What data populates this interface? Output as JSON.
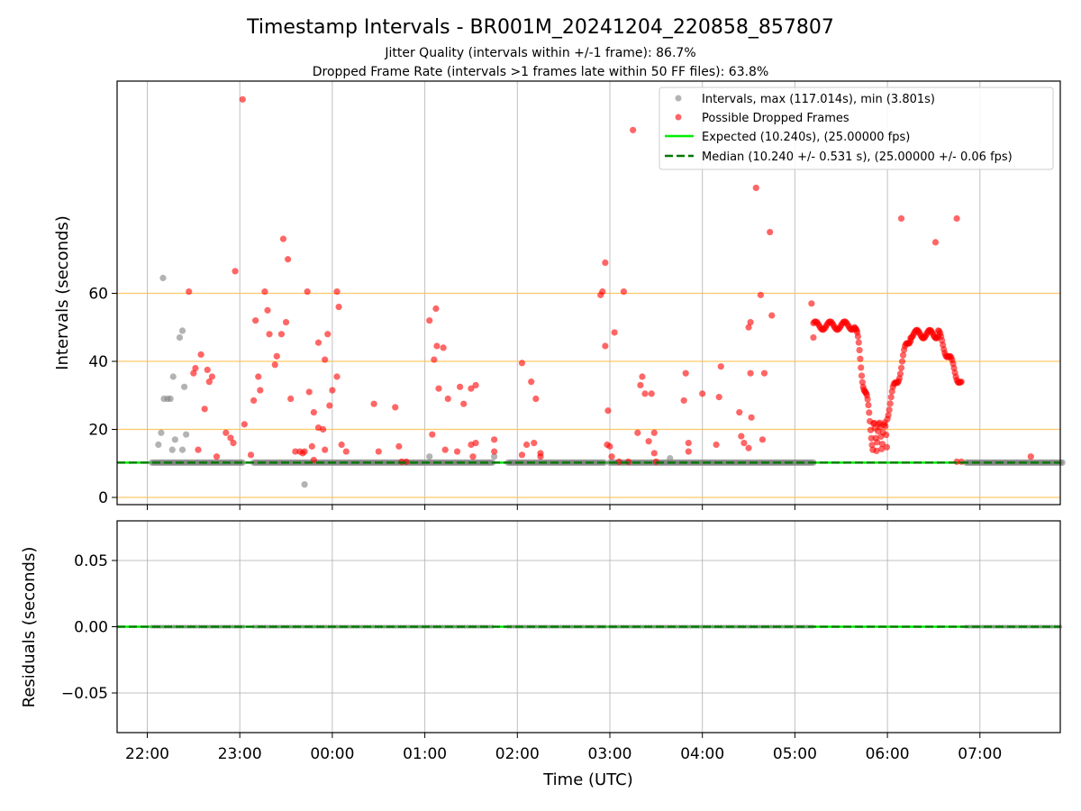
{
  "chart_data": [
    {
      "type": "scatter",
      "title": "Timestamp Intervals - BR001M_20241204_220858_857807",
      "subtitles": [
        "Jitter Quality (intervals within +/-1 frame): 86.7%",
        "Dropped Frame Rate (intervals >1 frames late within 50 FF files): 63.8%"
      ],
      "xlabel": "",
      "ylabel": "Intervals (seconds)",
      "x_unit": "hours since 00:00 UTC (2024-12-05)",
      "xlim": [
        -2.32,
        7.87
      ],
      "ylim": [
        -2,
        123
      ],
      "yticks": [
        0,
        20,
        40,
        60
      ],
      "xtick_labels": [
        "22:00",
        "23:00",
        "00:00",
        "01:00",
        "02:00",
        "03:00",
        "04:00",
        "05:00",
        "06:00",
        "07:00"
      ],
      "hlines_orange": [
        0,
        20,
        40,
        60
      ],
      "grid": "vertical",
      "legend_position": "top-right",
      "legend": [
        "Intervals, max (117.014s), min (3.801s)",
        "Possible Dropped Frames",
        "Expected (10.240s), (25.00000 fps)",
        "Median (10.240 +/- 0.531 s), (25.00000 +/- 0.06 fps)"
      ],
      "expected": 10.24,
      "median": 10.24,
      "series": [
        {
          "name": "Intervals",
          "color": "#808080",
          "segments": [
            [
              -1.95,
              -0.95
            ],
            [
              -0.85,
              1.75
            ],
            [
              1.9,
              2.95
            ],
            [
              3.0,
              5.2
            ],
            [
              6.85,
              7.9
            ]
          ],
          "points": [
            [
              -1.88,
              15.5
            ],
            [
              -1.85,
              19
            ],
            [
              -1.82,
              29
            ],
            [
              -1.78,
              29
            ],
            [
              -1.75,
              29
            ],
            [
              -1.83,
              64.5
            ],
            [
              -1.72,
              35.5
            ],
            [
              -1.65,
              47
            ],
            [
              -1.62,
              49
            ],
            [
              -1.6,
              32.5
            ],
            [
              -1.58,
              18.5
            ],
            [
              -1.7,
              17
            ],
            [
              -1.73,
              14
            ],
            [
              -1.62,
              14
            ],
            [
              -0.3,
              3.8
            ],
            [
              1.05,
              12
            ],
            [
              1.75,
              12
            ],
            [
              3.65,
              11.5
            ]
          ]
        },
        {
          "name": "Possible Dropped Frames",
          "color": "#ff0000",
          "points": [
            [
              -1.55,
              60.5
            ],
            [
              -1.5,
              36.5
            ],
            [
              -1.48,
              38
            ],
            [
              -1.45,
              14
            ],
            [
              -1.42,
              42
            ],
            [
              -1.38,
              26
            ],
            [
              -1.35,
              37.5
            ],
            [
              -1.33,
              34
            ],
            [
              -1.3,
              35.5
            ],
            [
              -1.25,
              12
            ],
            [
              -1.15,
              19
            ],
            [
              -1.1,
              17.5
            ],
            [
              -1.07,
              16
            ],
            [
              -1.05,
              66.5
            ],
            [
              -0.95,
              21.5
            ],
            [
              -0.88,
              12.5
            ],
            [
              -0.85,
              28.5
            ],
            [
              -0.83,
              52
            ],
            [
              -0.8,
              35.5
            ],
            [
              -0.78,
              31.5
            ],
            [
              -0.73,
              60.5
            ],
            [
              -0.7,
              55
            ],
            [
              -0.68,
              48
            ],
            [
              -0.62,
              39
            ],
            [
              -0.6,
              41.5
            ],
            [
              -0.55,
              48
            ],
            [
              -0.5,
              51.5
            ],
            [
              -0.45,
              29
            ],
            [
              -0.97,
              117
            ],
            [
              -0.53,
              76
            ],
            [
              -0.48,
              70
            ],
            [
              -0.35,
              13.5
            ],
            [
              -0.32,
              13
            ],
            [
              -0.2,
              11
            ],
            [
              -0.15,
              45.5
            ],
            [
              -0.08,
              40.5
            ],
            [
              -0.05,
              48
            ],
            [
              -0.03,
              27
            ],
            [
              0.0,
              31.5
            ],
            [
              0.05,
              60.5
            ],
            [
              0.07,
              56
            ],
            [
              0.05,
              35.5
            ],
            [
              0.1,
              15.5
            ],
            [
              0.15,
              13.5
            ],
            [
              -0.27,
              60.5
            ],
            [
              -0.25,
              31
            ],
            [
              -0.2,
              25
            ],
            [
              -0.15,
              20.5
            ],
            [
              -0.1,
              20
            ],
            [
              -0.08,
              14
            ],
            [
              -0.22,
              15
            ],
            [
              -0.3,
              13.5
            ],
            [
              -0.4,
              13.5
            ],
            [
              0.45,
              27.5
            ],
            [
              0.5,
              13.5
            ],
            [
              0.68,
              26.5
            ],
            [
              0.72,
              15
            ],
            [
              0.75,
              10.5
            ],
            [
              0.8,
              10.5
            ],
            [
              1.05,
              52
            ],
            [
              1.08,
              18.5
            ],
            [
              1.1,
              40.5
            ],
            [
              1.12,
              55.5
            ],
            [
              1.13,
              44.5
            ],
            [
              1.15,
              32
            ],
            [
              1.2,
              44
            ],
            [
              1.22,
              14
            ],
            [
              1.25,
              29
            ],
            [
              1.35,
              13.5
            ],
            [
              1.38,
              32.5
            ],
            [
              1.42,
              27.5
            ],
            [
              1.5,
              32
            ],
            [
              1.5,
              15.5
            ],
            [
              1.52,
              12
            ],
            [
              1.55,
              33
            ],
            [
              1.55,
              16
            ],
            [
              1.75,
              17
            ],
            [
              1.75,
              13.5
            ],
            [
              2.05,
              39.5
            ],
            [
              2.05,
              12.5
            ],
            [
              2.1,
              15.5
            ],
            [
              2.15,
              34
            ],
            [
              2.18,
              16
            ],
            [
              2.2,
              29
            ],
            [
              2.25,
              13
            ],
            [
              2.25,
              12
            ],
            [
              2.9,
              59.5
            ],
            [
              2.92,
              60.5
            ],
            [
              2.95,
              69
            ],
            [
              2.95,
              44.5
            ],
            [
              2.97,
              15.5
            ],
            [
              2.98,
              25.5
            ],
            [
              3.0,
              15
            ],
            [
              3.02,
              12
            ],
            [
              3.05,
              48.5
            ],
            [
              3.1,
              10.5
            ],
            [
              3.15,
              60.5
            ],
            [
              3.2,
              10.5
            ],
            [
              3.25,
              108
            ],
            [
              3.3,
              19
            ],
            [
              3.33,
              33
            ],
            [
              3.35,
              35.5
            ],
            [
              3.38,
              30.5
            ],
            [
              3.42,
              16.5
            ],
            [
              3.45,
              30.5
            ],
            [
              3.48,
              19
            ],
            [
              3.48,
              13
            ],
            [
              3.5,
              10.5
            ],
            [
              3.8,
              28.5
            ],
            [
              3.82,
              36.5
            ],
            [
              3.85,
              16
            ],
            [
              3.85,
              13.5
            ],
            [
              4.0,
              30.5
            ],
            [
              4.15,
              15.5
            ],
            [
              4.18,
              29.5
            ],
            [
              4.2,
              38.5
            ],
            [
              4.4,
              25
            ],
            [
              4.42,
              18
            ],
            [
              4.45,
              16
            ],
            [
              4.5,
              14.5
            ],
            [
              4.5,
              50
            ],
            [
              4.52,
              51.5
            ],
            [
              4.52,
              36.5
            ],
            [
              4.53,
              23.5
            ],
            [
              4.58,
              91
            ],
            [
              4.63,
              59.5
            ],
            [
              4.65,
              17
            ],
            [
              4.67,
              36.5
            ],
            [
              4.73,
              78
            ],
            [
              4.75,
              53.5
            ],
            [
              5.18,
              57
            ],
            [
              5.2,
              47
            ],
            [
              6.15,
              82
            ],
            [
              6.52,
              75
            ],
            [
              6.75,
              82
            ],
            [
              6.75,
              10.5
            ],
            [
              6.8,
              10.5
            ],
            [
              7.55,
              12
            ]
          ],
          "arc1": {
            "x_range": [
              5.2,
              5.65
            ],
            "plateau": 50.5,
            "fall_to": 15,
            "fall_end": 5.85
          },
          "arc2": {
            "x_range": [
              6.0,
              6.8
            ],
            "plateau": 48,
            "rise_from": 25
          }
        },
        {
          "name": "Expected",
          "color": "#00ee00",
          "value": 10.24
        },
        {
          "name": "Median",
          "color": "#007700",
          "value": 10.24
        }
      ]
    },
    {
      "type": "line",
      "xlabel": "Time (UTC)",
      "ylabel": "Residuals (seconds)",
      "ylim": [
        -0.08,
        0.08
      ],
      "yticks": [
        0.05,
        0.0,
        -0.05
      ],
      "ytick_labels": [
        "0.05",
        "0.00",
        "−0.05"
      ],
      "xtick_labels": [
        "22:00",
        "23:00",
        "00:00",
        "01:00",
        "02:00",
        "03:00",
        "04:00",
        "05:00",
        "06:00",
        "07:00"
      ],
      "grid": "both",
      "values": [
        0.0
      ]
    }
  ]
}
